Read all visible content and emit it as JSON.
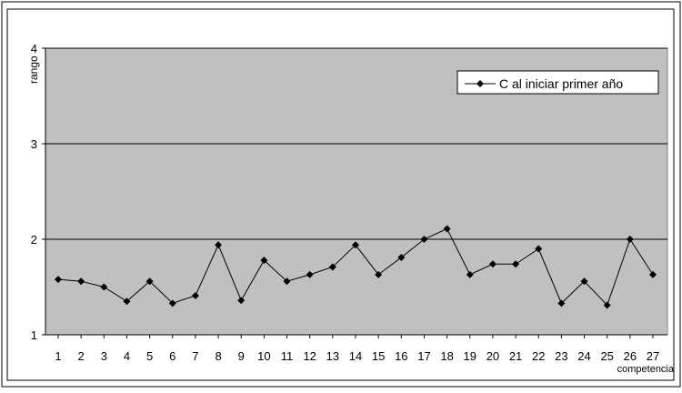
{
  "chart_data": {
    "type": "line",
    "ylabel": "rango",
    "xlabel": "competencia",
    "ylim": [
      1,
      4
    ],
    "yticks": [
      "1",
      "2",
      "3",
      "4"
    ],
    "grid": true,
    "legend_position": "top-right",
    "categories": [
      "1",
      "2",
      "3",
      "4",
      "5",
      "6",
      "7",
      "8",
      "9",
      "10",
      "11",
      "12",
      "13",
      "14",
      "15",
      "16",
      "17",
      "18",
      "19",
      "20",
      "21",
      "22",
      "23",
      "24",
      "25",
      "26",
      "27"
    ],
    "series": [
      {
        "name": "C al iniciar primer año",
        "values": [
          1.58,
          1.56,
          1.5,
          1.35,
          1.56,
          1.33,
          1.41,
          1.94,
          1.36,
          1.78,
          1.56,
          1.63,
          1.71,
          1.94,
          1.63,
          1.81,
          2.0,
          2.11,
          1.63,
          1.74,
          1.74,
          1.9,
          1.33,
          1.56,
          1.31,
          2.0,
          1.63
        ]
      }
    ],
    "colors": {
      "plot_background": "#c0c0c0",
      "series_line": "#000000",
      "gridline": "#000000"
    }
  }
}
